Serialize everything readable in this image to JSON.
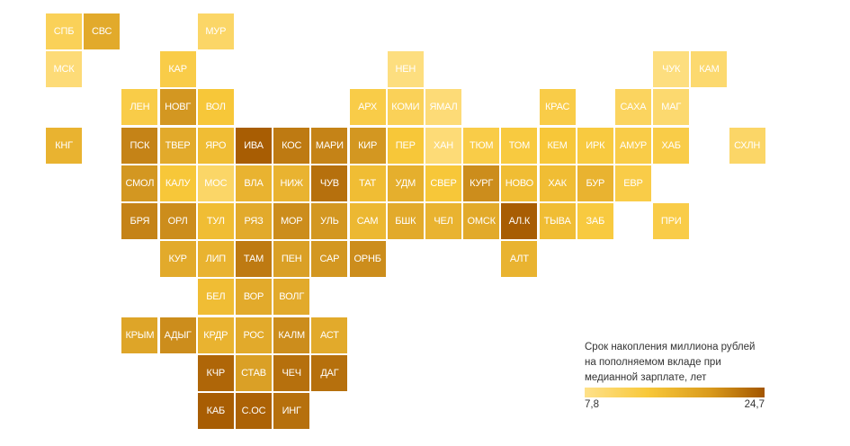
{
  "colors": {
    "low": "#fee18a",
    "mid": "#f8c83a",
    "high": "#a35600"
  },
  "legend": {
    "title": "Срок накопления миллиона рублей на пополняемом вкладе при медианной зарплате, лет",
    "min_label": "7,8",
    "max_label": "24,7",
    "min": 7.8,
    "max": 24.7
  },
  "regions": [
    {
      "label": "СПБ",
      "value": 11
    },
    {
      "label": "СВС",
      "value": 16
    },
    {
      "label": "МУР",
      "value": 10
    },
    {
      "label": "МСК",
      "value": 9
    },
    {
      "label": "КАР",
      "value": 12
    },
    {
      "label": "НЕН",
      "value": 8.5
    },
    {
      "label": "ЧУК",
      "value": 8.5
    },
    {
      "label": "КАМ",
      "value": 9.5
    },
    {
      "label": "ЛЕН",
      "value": 12
    },
    {
      "label": "НОВГ",
      "value": 18
    },
    {
      "label": "ВОЛ",
      "value": 13
    },
    {
      "label": "АРХ",
      "value": 12
    },
    {
      "label": "КОМИ",
      "value": 11
    },
    {
      "label": "ЯМАЛ",
      "value": 9
    },
    {
      "label": "КРАС",
      "value": 12
    },
    {
      "label": "САХА",
      "value": 10.5
    },
    {
      "label": "МАГ",
      "value": 9.5
    },
    {
      "label": "КНГ",
      "value": 15
    },
    {
      "label": "ПСК",
      "value": 20
    },
    {
      "label": "ТВЕР",
      "value": 16
    },
    {
      "label": "ЯРО",
      "value": 14
    },
    {
      "label": "ИВА",
      "value": 24
    },
    {
      "label": "КОС",
      "value": 21
    },
    {
      "label": "МАРИ",
      "value": 20
    },
    {
      "label": "КИР",
      "value": 18
    },
    {
      "label": "ПЕР",
      "value": 13
    },
    {
      "label": "ХАН",
      "value": 9
    },
    {
      "label": "ТЮМ",
      "value": 12
    },
    {
      "label": "ТОМ",
      "value": 12.5
    },
    {
      "label": "КЕМ",
      "value": 13
    },
    {
      "label": "ИРК",
      "value": 12.5
    },
    {
      "label": "АМУР",
      "value": 12
    },
    {
      "label": "ХАБ",
      "value": 12
    },
    {
      "label": "СХЛН",
      "value": 10
    },
    {
      "label": "СМОЛ",
      "value": 18
    },
    {
      "label": "КАЛУ",
      "value": 13
    },
    {
      "label": "МОС",
      "value": 10
    },
    {
      "label": "ВЛА",
      "value": 15
    },
    {
      "label": "НИЖ",
      "value": 15
    },
    {
      "label": "ЧУВ",
      "value": 22
    },
    {
      "label": "ТАТ",
      "value": 14
    },
    {
      "label": "УДМ",
      "value": 15.5
    },
    {
      "label": "СВЕР",
      "value": 13
    },
    {
      "label": "КУРГ",
      "value": 19
    },
    {
      "label": "НОВО",
      "value": 14
    },
    {
      "label": "ХАК",
      "value": 14
    },
    {
      "label": "БУР",
      "value": 15
    },
    {
      "label": "ЕВР",
      "value": 12
    },
    {
      "label": "БРЯ",
      "value": 20
    },
    {
      "label": "ОРЛ",
      "value": 19
    },
    {
      "label": "ТУЛ",
      "value": 14
    },
    {
      "label": "РЯЗ",
      "value": 16
    },
    {
      "label": "МОР",
      "value": 19
    },
    {
      "label": "УЛЬ",
      "value": 18
    },
    {
      "label": "САМ",
      "value": 14.5
    },
    {
      "label": "БШК",
      "value": 16
    },
    {
      "label": "ЧЕЛ",
      "value": 15
    },
    {
      "label": "ОМСК",
      "value": 16
    },
    {
      "label": "АЛ.К",
      "value": 24
    },
    {
      "label": "ТЫВА",
      "value": 14
    },
    {
      "label": "ЗАБ",
      "value": 12.5
    },
    {
      "label": "ПРИ",
      "value": 12
    },
    {
      "label": "КУР",
      "value": 16
    },
    {
      "label": "ЛИП",
      "value": 15
    },
    {
      "label": "ТАМ",
      "value": 21
    },
    {
      "label": "ПЕН",
      "value": 17
    },
    {
      "label": "САР",
      "value": 18
    },
    {
      "label": "ОРНБ",
      "value": 19
    },
    {
      "label": "АЛТ",
      "value": 15
    },
    {
      "label": "БЕЛ",
      "value": 14
    },
    {
      "label": "ВОР",
      "value": 16
    },
    {
      "label": "ВОЛГ",
      "value": 16
    },
    {
      "label": "КРЫМ",
      "value": 16.5
    },
    {
      "label": "АДЫГ",
      "value": 19
    },
    {
      "label": "КРДР",
      "value": 15
    },
    {
      "label": "РОС",
      "value": 16
    },
    {
      "label": "КАЛМ",
      "value": 19
    },
    {
      "label": "АСТ",
      "value": 16
    },
    {
      "label": "КЧР",
      "value": 23
    },
    {
      "label": "СТАВ",
      "value": 17
    },
    {
      "label": "ЧЕЧ",
      "value": 22
    },
    {
      "label": "ДАГ",
      "value": 22
    },
    {
      "label": "КАБ",
      "value": 24
    },
    {
      "label": "С.ОС",
      "value": 23.5
    },
    {
      "label": "ИНГ",
      "value": 22
    }
  ]
}
